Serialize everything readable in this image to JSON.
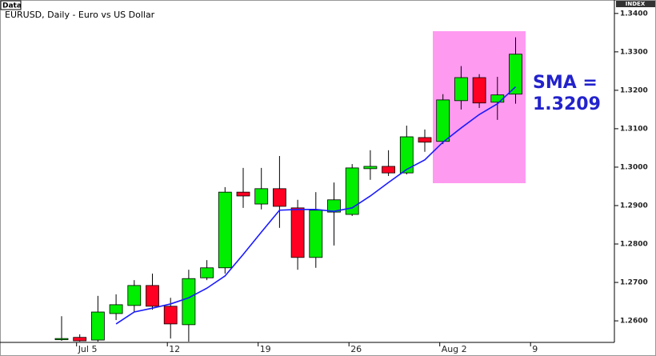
{
  "chart_data": {
    "type": "candlestick",
    "tag": "Data",
    "title": "EURUSD, Daily - Euro vs US Dollar",
    "axis_tag": "INDEX",
    "categories": [
      null,
      "Jul 5",
      null,
      null,
      null,
      null,
      "12",
      null,
      null,
      null,
      null,
      "19",
      null,
      null,
      null,
      null,
      "26",
      null,
      null,
      null,
      null,
      "Aug 2",
      null,
      null,
      null,
      null,
      "9"
    ],
    "open": [
      1.2552,
      1.2557,
      1.255,
      1.2619,
      1.264,
      1.2692,
      1.2638,
      1.259,
      1.2712,
      1.2738,
      1.2935,
      1.2904,
      1.2944,
      1.2894,
      1.2765,
      1.2883,
      1.2877,
      1.2996,
      1.3002,
      1.2985,
      1.3077,
      1.3067,
      1.3173,
      1.3233,
      1.3169,
      1.319,
      null
    ],
    "high": [
      1.2612,
      1.2565,
      1.2665,
      1.2669,
      1.2706,
      1.2723,
      1.266,
      1.2733,
      1.2758,
      1.2948,
      1.2998,
      1.2998,
      1.3029,
      1.2915,
      1.2935,
      1.296,
      1.3008,
      1.3044,
      1.3044,
      1.3108,
      1.3098,
      1.319,
      1.3263,
      1.3242,
      1.3235,
      1.3338,
      null
    ],
    "low": [
      1.2548,
      1.2546,
      1.2546,
      1.2602,
      1.2623,
      1.2629,
      1.2554,
      1.2546,
      1.2706,
      1.2723,
      1.2894,
      1.289,
      1.2842,
      1.2733,
      1.2738,
      1.2796,
      1.2873,
      1.2967,
      1.2977,
      1.2981,
      1.304,
      1.306,
      1.315,
      1.3154,
      1.3123,
      1.3165,
      null
    ],
    "close": [
      1.2554,
      1.2548,
      1.2623,
      1.2642,
      1.2692,
      1.2638,
      1.2592,
      1.271,
      1.2738,
      1.2935,
      1.2925,
      1.2944,
      1.2898,
      1.2765,
      1.2888,
      1.2915,
      1.2998,
      1.3002,
      1.2985,
      1.3079,
      1.3065,
      1.3175,
      1.3233,
      1.3167,
      1.3188,
      1.3294,
      null
    ],
    "up_color": "#00ee00",
    "down_color": "#ff0022",
    "sma": {
      "color": "#1a1aff",
      "values": [
        null,
        null,
        null,
        1.2592,
        1.2623,
        1.2633,
        1.2644,
        1.266,
        1.2685,
        1.2717,
        1.2773,
        1.2831,
        1.2888,
        1.289,
        1.289,
        1.2885,
        1.2894,
        1.2925,
        1.296,
        1.2994,
        1.3019,
        1.3065,
        1.3102,
        1.3137,
        1.3165,
        1.3209,
        null
      ]
    },
    "highlight_color": "#ff88ee",
    "annotation": [
      "SMA =",
      "1.3209"
    ],
    "annotation_color": "#2222cc",
    "ylim": [
      1.2546,
      1.341
    ],
    "yticks": [
      {
        "value": 1.26,
        "label": "1.2600"
      },
      {
        "value": 1.27,
        "label": "1.2700"
      },
      {
        "value": 1.28,
        "label": "1.2800"
      },
      {
        "value": 1.29,
        "label": "1.2900"
      },
      {
        "value": 1.3,
        "label": "1.3000"
      },
      {
        "value": 1.31,
        "label": "1.3100"
      },
      {
        "value": 1.32,
        "label": "1.3200"
      },
      {
        "value": 1.33,
        "label": "1.3300"
      },
      {
        "value": 1.34,
        "label": "1.3400"
      }
    ]
  }
}
